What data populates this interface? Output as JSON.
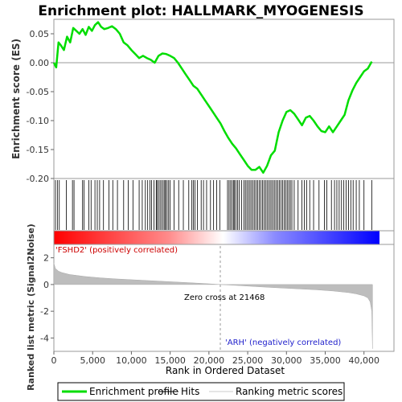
{
  "chart_data": {
    "title": "Enrichment plot: HALLMARK_MYOGENESIS",
    "type": "line",
    "x_label": "Rank in Ordered Dataset",
    "x_range": [
      0,
      42000
    ],
    "x_ticks": [
      0,
      5000,
      10000,
      15000,
      20000,
      25000,
      30000,
      35000,
      40000
    ],
    "x_tick_labels": [
      "0",
      "5,000",
      "10,000",
      "15,000",
      "20,000",
      "25,000",
      "30,000",
      "35,000",
      "40,000"
    ],
    "es_panel": {
      "y_label": "Enrichment score (ES)",
      "y_range": [
        -0.2,
        0.075
      ],
      "y_ticks": [
        0.05,
        0.0,
        -0.05,
        -0.1,
        -0.15,
        -0.2
      ],
      "y_tick_labels": [
        "0.05",
        "0.00",
        "-0.05",
        "-0.10",
        "-0.15",
        "-0.20"
      ],
      "series_name": "Enrichment profile",
      "color": "#00dd00",
      "x": [
        0,
        300,
        600,
        900,
        1300,
        1700,
        2100,
        2500,
        2900,
        3300,
        3700,
        4100,
        4500,
        4900,
        5300,
        5700,
        6100,
        6500,
        7000,
        7500,
        8000,
        8500,
        9000,
        9500,
        10000,
        10500,
        11000,
        11500,
        12000,
        12500,
        13000,
        13500,
        14000,
        14500,
        15000,
        15500,
        16000,
        16500,
        17000,
        17500,
        18000,
        18500,
        19000,
        19500,
        20000,
        20500,
        21000,
        21500,
        22000,
        22500,
        23000,
        23500,
        24000,
        24500,
        25000,
        25500,
        26000,
        26500,
        27000,
        27500,
        28000,
        28500,
        29000,
        29500,
        30000,
        30500,
        31000,
        31500,
        32000,
        32500,
        33000,
        33500,
        34000,
        34500,
        35000,
        35500,
        36000,
        36500,
        37000,
        37500,
        38000,
        38500,
        39000,
        39500,
        40000,
        40500,
        41000
      ],
      "y": [
        0.0,
        -0.008,
        0.035,
        0.03,
        0.022,
        0.045,
        0.035,
        0.06,
        0.055,
        0.05,
        0.058,
        0.048,
        0.062,
        0.055,
        0.065,
        0.07,
        0.062,
        0.058,
        0.06,
        0.063,
        0.058,
        0.05,
        0.035,
        0.03,
        0.022,
        0.015,
        0.008,
        0.012,
        0.008,
        0.005,
        0.0,
        0.012,
        0.016,
        0.015,
        0.012,
        0.008,
        0.0,
        -0.01,
        -0.02,
        -0.03,
        -0.04,
        -0.045,
        -0.055,
        -0.065,
        -0.075,
        -0.085,
        -0.095,
        -0.105,
        -0.118,
        -0.13,
        -0.14,
        -0.148,
        -0.158,
        -0.168,
        -0.178,
        -0.185,
        -0.185,
        -0.18,
        -0.19,
        -0.178,
        -0.16,
        -0.152,
        -0.12,
        -0.1,
        -0.085,
        -0.082,
        -0.088,
        -0.098,
        -0.108,
        -0.095,
        -0.092,
        -0.1,
        -0.11,
        -0.118,
        -0.12,
        -0.11,
        -0.12,
        -0.11,
        -0.1,
        -0.09,
        -0.065,
        -0.048,
        -0.035,
        -0.025,
        -0.015,
        -0.01,
        0.002
      ]
    },
    "hits": [
      200,
      450,
      700,
      1600,
      2400,
      2600,
      3700,
      3900,
      4500,
      4800,
      5300,
      5600,
      5900,
      6400,
      7100,
      7600,
      8200,
      9000,
      9600,
      10200,
      11000,
      11400,
      11800,
      12100,
      12400,
      12600,
      12900,
      13200,
      13300,
      13500,
      13700,
      13900,
      14100,
      14300,
      14400,
      14600,
      14800,
      15000,
      15500,
      16100,
      16700,
      17400,
      17800,
      18000,
      18200,
      18500,
      19000,
      19300,
      19700,
      20200,
      20600,
      21000,
      21400,
      22400,
      22600,
      22800,
      23000,
      23200,
      23300,
      23500,
      23700,
      23900,
      24200,
      24500,
      24700,
      24900,
      25100,
      25300,
      25500,
      25700,
      25900,
      26100,
      26300,
      26500,
      26700,
      26900,
      27100,
      27300,
      27500,
      27700,
      27900,
      28100,
      28300,
      28500,
      28700,
      28900,
      29100,
      29300,
      29500,
      29700,
      29900,
      30100,
      30300,
      30500,
      30700,
      31000,
      31500,
      32000,
      32300,
      32600,
      33000,
      33500,
      34200,
      34900,
      35200,
      35800,
      36200,
      36500,
      36800,
      37100,
      37400,
      37700,
      38000,
      38300,
      38600,
      39000,
      39400,
      40000,
      41000
    ],
    "metric_panel": {
      "y_label": "Ranked list metric (Signal2Noise)",
      "y_range": [
        -5,
        3
      ],
      "y_ticks": [
        2,
        0,
        -2,
        -4
      ],
      "y_tick_labels": [
        "2",
        "0",
        "-2",
        "-4"
      ],
      "series_name": "Ranking metric scores",
      "x": [
        0,
        200,
        600,
        1000,
        2000,
        4000,
        6000,
        8000,
        10000,
        12000,
        14000,
        16000,
        18000,
        20000,
        21468,
        24000,
        26000,
        28000,
        30000,
        32000,
        34000,
        36000,
        38000,
        39000,
        40000,
        40500,
        40800,
        41000,
        41100
      ],
      "y": [
        1.6,
        1.2,
        1.0,
        0.9,
        0.75,
        0.6,
        0.5,
        0.42,
        0.36,
        0.3,
        0.24,
        0.18,
        0.12,
        0.05,
        0.0,
        -0.08,
        -0.15,
        -0.22,
        -0.28,
        -0.34,
        -0.4,
        -0.48,
        -0.6,
        -0.7,
        -0.85,
        -1.0,
        -1.3,
        -2.0,
        -4.8
      ],
      "zero_cross": "Zero cross at 21468",
      "pos_label": "'FSHD2' (positively correlated)",
      "neg_label": "'ARH' (negatively correlated)"
    },
    "legend": {
      "placement": "bottom",
      "items": [
        {
          "label": "Enrichment profile",
          "color": "#00dd00"
        },
        {
          "label": "Hits",
          "color": "#000000"
        },
        {
          "label": "Ranking metric scores",
          "color": "#cccccc"
        }
      ]
    }
  }
}
